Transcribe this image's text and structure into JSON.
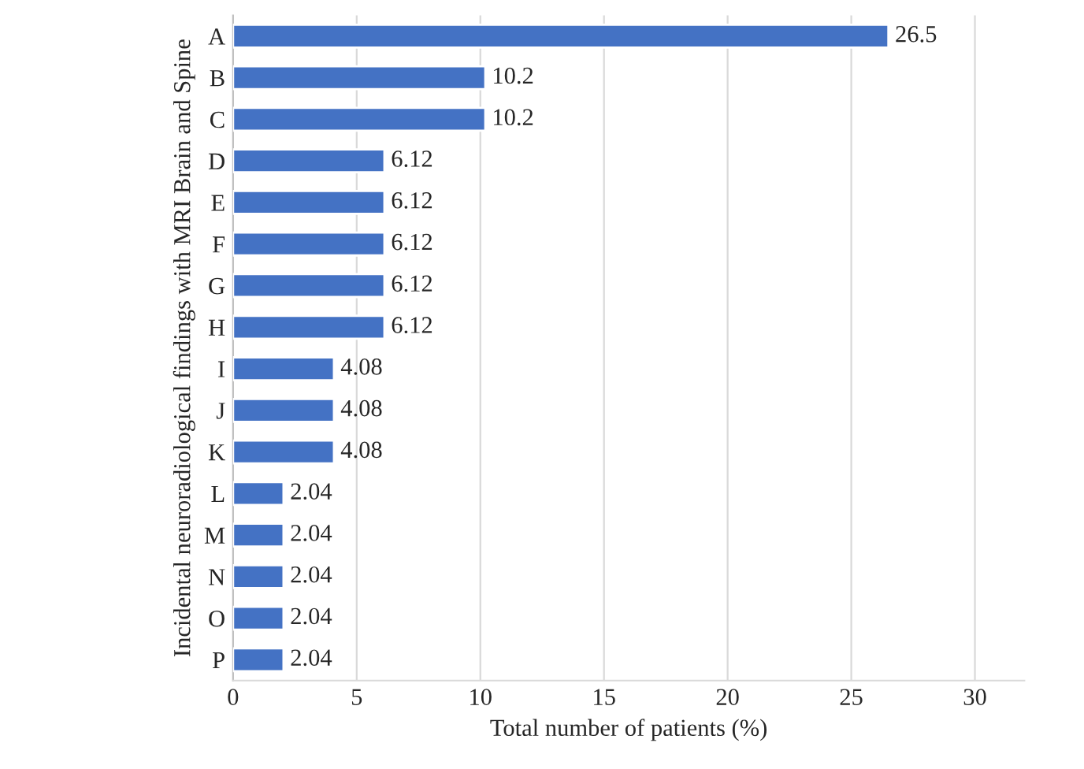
{
  "chart_data": {
    "type": "bar",
    "orientation": "horizontal",
    "categories": [
      "A",
      "B",
      "C",
      "D",
      "E",
      "F",
      "G",
      "H",
      "I",
      "J",
      "K",
      "L",
      "M",
      "N",
      "O",
      "P"
    ],
    "values": [
      26.5,
      10.2,
      10.2,
      6.12,
      6.12,
      6.12,
      6.12,
      6.12,
      4.08,
      4.08,
      4.08,
      2.04,
      2.04,
      2.04,
      2.04,
      2.04
    ],
    "color": "#4472c4",
    "data_labels": true,
    "xlabel": "Total number of patients (%)",
    "ylabel": "Incidental neuroradiological findings with MRI Brain and Spine",
    "xlim": [
      0,
      32
    ],
    "xticks": [
      0,
      5,
      10,
      15,
      20,
      25,
      30
    ],
    "grid": "x",
    "legend": false
  }
}
